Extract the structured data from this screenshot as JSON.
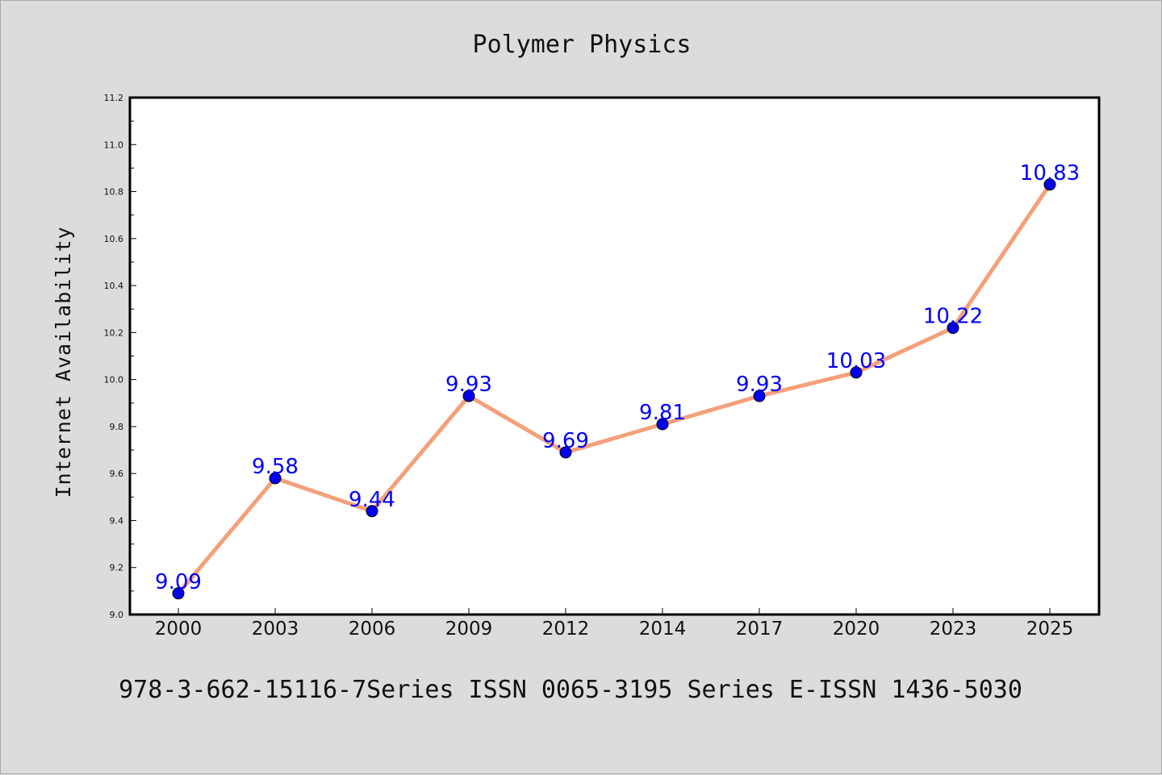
{
  "chart_data": {
    "type": "line",
    "title": "Polymer Physics",
    "xlabel": "",
    "ylabel": "Internet Availability",
    "categories": [
      "2000",
      "2003",
      "2006",
      "2009",
      "2012",
      "2014",
      "2017",
      "2020",
      "2023",
      "2025"
    ],
    "values": [
      9.09,
      9.58,
      9.44,
      9.93,
      9.69,
      9.81,
      9.93,
      10.03,
      10.22,
      10.83
    ],
    "data_labels": [
      "9.09",
      "9.58",
      "9.44",
      "9.93",
      "9.69",
      "9.81",
      "9.93",
      "10.03",
      "10.22",
      "10.83"
    ],
    "ylim": [
      9.0,
      11.2
    ],
    "yticks": [
      "9.0",
      "9.2",
      "9.4",
      "9.6",
      "9.8",
      "10.0",
      "10.2",
      "10.4",
      "10.6",
      "10.8",
      "11.0",
      "11.2"
    ],
    "grid": false,
    "line_color": "#f4a07a",
    "marker_color": "#0000ee",
    "label_color": "#0000ff"
  },
  "footer": "978-3-662-15116-7Series ISSN 0065-3195 Series E-ISSN 1436-5030"
}
